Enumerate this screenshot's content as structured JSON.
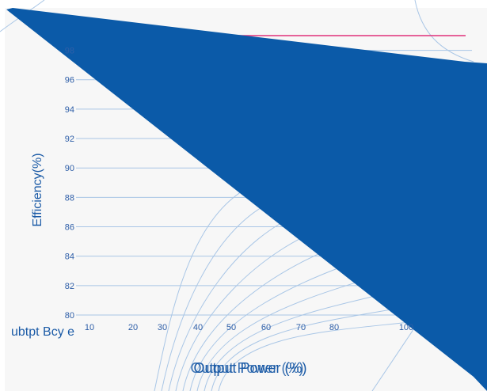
{
  "chart_data": {
    "type": "line",
    "title": "",
    "xlabel": "Output Power (%)",
    "ylabel": "Efficiency(%)",
    "xlim": [
      10,
      100
    ],
    "ylim": [
      80,
      99
    ],
    "x_ticks": [
      "10",
      "20",
      "30",
      "40",
      "50",
      "60",
      "70",
      "80",
      "100"
    ],
    "y_ticks": [
      "80",
      "82",
      "84",
      "86",
      "88",
      "90",
      "92",
      "94",
      "96",
      "98"
    ],
    "grid": "horizontal",
    "legend": "none",
    "overlay_text": [
      "Output Power (%)",
      "ubtpt Bcy e"
    ],
    "series": [
      {
        "color": "#e0307a",
        "x": [
          40,
          100
        ],
        "y": [
          99,
          99
        ]
      }
    ],
    "colors": {
      "band": "#0b5aa8",
      "grid": "#a9c6e6",
      "curves": "#a9c6e6",
      "series": "#e0307a",
      "text": "#1a5aa6"
    }
  }
}
